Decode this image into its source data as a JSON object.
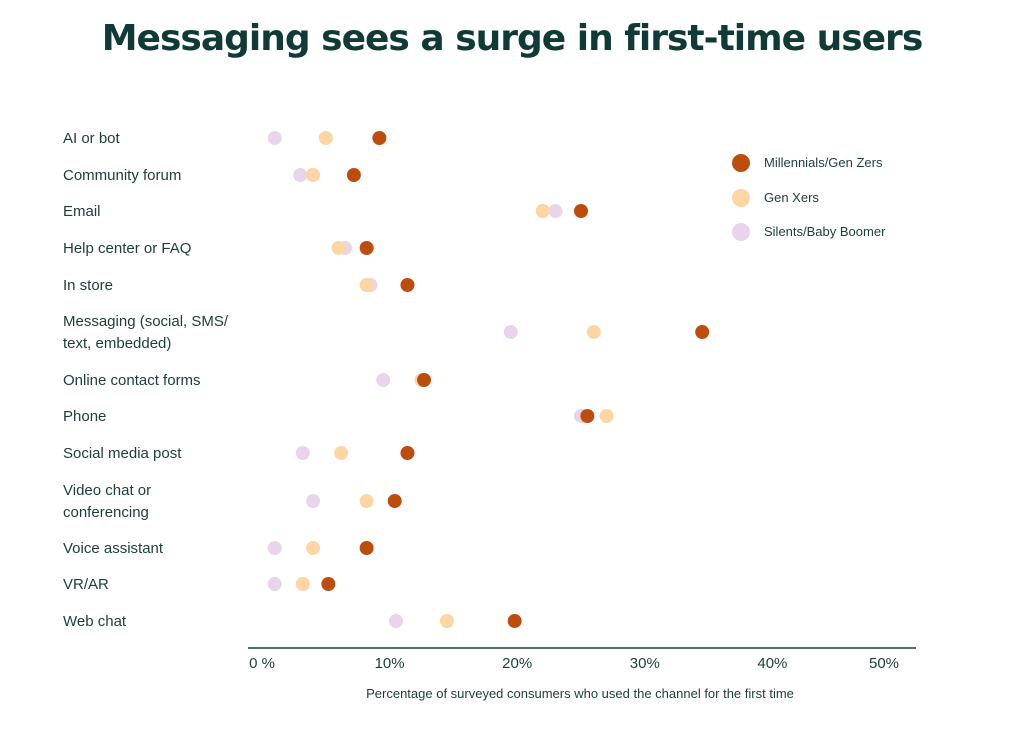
{
  "chart_data": {
    "type": "scatter",
    "title": "Messaging sees a surge in first-time users",
    "xlabel": "Percentage of surveyed consumers who used the channel for the first time",
    "ylabel": "",
    "xlim": [
      0,
      50
    ],
    "xticks": [
      "0 %",
      "10%",
      "20%",
      "30%",
      "40%",
      "50%"
    ],
    "xtick_values": [
      0,
      10,
      20,
      30,
      40,
      50
    ],
    "legend_position": "top-right",
    "categories": [
      [
        "AI or bot"
      ],
      [
        "Community forum"
      ],
      [
        "Email"
      ],
      [
        "Help center or FAQ"
      ],
      [
        "In store"
      ],
      [
        "Messaging (social, SMS/",
        "text, embedded)"
      ],
      [
        "Online contact forms"
      ],
      [
        "Phone"
      ],
      [
        "Social media post"
      ],
      [
        "Video chat or",
        "conferencing"
      ],
      [
        "Voice assistant"
      ],
      [
        "VR/AR"
      ],
      [
        "Web chat"
      ]
    ],
    "series": [
      {
        "name": "Silents/Baby Boomer",
        "color": "#e8d5e9",
        "values": [
          1.0,
          3.0,
          23.0,
          6.5,
          8.5,
          19.5,
          9.5,
          25.0,
          3.2,
          4.0,
          1.0,
          1.0,
          10.5
        ]
      },
      {
        "name": "Gen Xers",
        "color": "#fdd6a4",
        "values": [
          5.0,
          4.0,
          22.0,
          6.0,
          8.2,
          26.0,
          12.5,
          27.0,
          6.2,
          8.2,
          4.0,
          3.2,
          14.5
        ]
      },
      {
        "name": "Millennials/Gen Zers",
        "color": "#bd4d0c",
        "values": [
          9.2,
          7.2,
          25.0,
          8.2,
          11.4,
          34.5,
          12.7,
          25.5,
          11.4,
          10.4,
          8.2,
          5.2,
          19.8
        ]
      }
    ],
    "legend_order": [
      "Millennials/Gen Zers",
      "Gen Xers",
      "Silents/Baby Boomer"
    ]
  }
}
